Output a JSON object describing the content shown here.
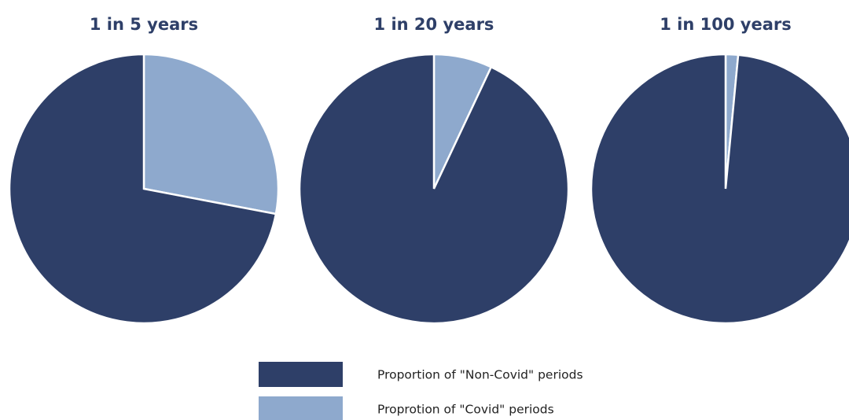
{
  "colors": {
    "non_covid": "#2e3f68",
    "covid": "#8ea9cd",
    "title": "#2e3f68",
    "slice_border": "#ffffff",
    "legend_text": "#222222"
  },
  "legend": {
    "items": [
      {
        "label": "Proportion of \"Non-Covid\" periods",
        "series": "non_covid"
      },
      {
        "label": "Proprotion of \"Covid\" periods",
        "series": "covid"
      }
    ]
  },
  "chart_data": [
    {
      "type": "pie",
      "title": "1 in 5 years",
      "slices": [
        {
          "series": "covid",
          "value": 0.28
        },
        {
          "series": "non_covid",
          "value": 0.72
        }
      ]
    },
    {
      "type": "pie",
      "title": "1 in 20 years",
      "slices": [
        {
          "series": "covid",
          "value": 0.07
        },
        {
          "series": "non_covid",
          "value": 0.93
        }
      ]
    },
    {
      "type": "pie",
      "title": "1 in 100 years",
      "slices": [
        {
          "series": "covid",
          "value": 0.015
        },
        {
          "series": "non_covid",
          "value": 0.985
        }
      ]
    }
  ]
}
